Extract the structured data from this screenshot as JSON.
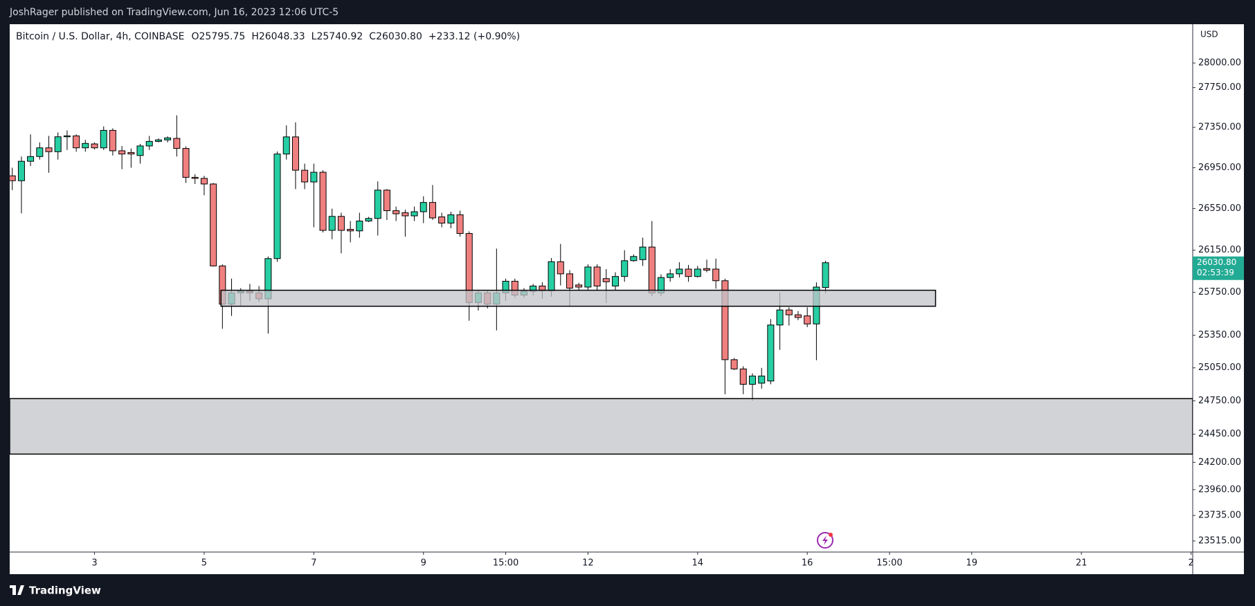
{
  "header": {
    "publisher": "JoshRager published on TradingView.com, Jun 16, 2023 12:06 UTC-5"
  },
  "footer": {
    "brand": "TradingView"
  },
  "chart_data": {
    "type": "candlestick",
    "symbol": "Bitcoin / U.S. Dollar, 4h, COINBASE",
    "ohlc": [
      {
        "key": "O",
        "value": "25795.75"
      },
      {
        "key": "H",
        "value": "26048.33"
      },
      {
        "key": "L",
        "value": "25740.92"
      },
      {
        "key": "C",
        "value": "26030.80"
      }
    ],
    "change": "+233.12 (+0.90%)",
    "currency": "USD",
    "log_scale": true,
    "grid": false,
    "up_color": "#26cfa3",
    "down_color": "#f07f7f",
    "border_color": "#000000",
    "x": [
      1.5,
      1.667,
      1.833,
      2,
      2.167,
      2.333,
      2.5,
      2.667,
      2.833,
      3,
      3.167,
      3.333,
      3.5,
      3.667,
      3.833,
      4,
      4.167,
      4.333,
      4.5,
      4.667,
      4.833,
      5,
      5.167,
      5.333,
      5.5,
      5.667,
      5.833,
      6,
      6.167,
      6.333,
      6.5,
      6.667,
      6.833,
      7,
      7.167,
      7.333,
      7.5,
      7.667,
      7.833,
      8,
      8.167,
      8.333,
      8.5,
      8.667,
      8.833,
      9,
      9.167,
      9.333,
      9.5,
      9.667,
      9.833,
      10,
      10.167,
      10.333,
      10.5,
      10.667,
      10.833,
      11,
      11.167,
      11.333,
      11.5,
      11.667,
      11.833,
      12,
      12.167,
      12.333,
      12.5,
      12.667,
      12.833,
      13,
      13.167,
      13.333,
      13.5,
      13.667,
      13.833,
      14,
      14.167,
      14.333,
      14.5,
      14.667,
      14.833,
      15,
      15.167,
      15.333,
      15.5,
      15.667,
      15.833,
      16,
      16.167,
      16.333
    ],
    "open": [
      26870,
      26822,
      27013,
      27060,
      27146,
      27108,
      27256,
      27265,
      27146,
      27185,
      27146,
      27320,
      27117,
      27100,
      27070,
      27165,
      27210,
      27225,
      27240,
      27140,
      26855,
      26845,
      26790,
      26000,
      25640,
      25745,
      25760,
      25745,
      25690,
      26070,
      27085,
      27255,
      26925,
      26810,
      26905,
      26340,
      26475,
      26350,
      26335,
      26430,
      26455,
      26730,
      26530,
      26510,
      26480,
      26520,
      26610,
      26470,
      26410,
      26490,
      26310,
      25655,
      25745,
      25640,
      25745,
      25855,
      25725,
      25760,
      25810,
      25765,
      26040,
      25925,
      25820,
      25800,
      25990,
      25880,
      25810,
      25900,
      26050,
      26060,
      26180,
      25745,
      25890,
      25925,
      25970,
      25900,
      25975,
      25970,
      25860,
      25125,
      25040,
      24900,
      24910,
      24930,
      25445,
      25585,
      25540,
      25530,
      25455,
      25795.75
    ],
    "high": [
      26950,
      27060,
      27280,
      27200,
      27265,
      27300,
      27320,
      27280,
      27225,
      27200,
      27360,
      27340,
      27165,
      27140,
      27185,
      27265,
      27240,
      27260,
      27470,
      27160,
      26885,
      26870,
      26800,
      26015,
      25880,
      25790,
      25830,
      25810,
      26090,
      27110,
      27370,
      27400,
      26990,
      26990,
      26925,
      26550,
      26510,
      26430,
      26510,
      26470,
      26815,
      26740,
      26570,
      26540,
      26570,
      26670,
      26780,
      26510,
      26520,
      26530,
      26330,
      25770,
      25770,
      26165,
      25880,
      25880,
      25790,
      25830,
      25845,
      26075,
      26210,
      25960,
      25840,
      26015,
      26015,
      25970,
      25940,
      26150,
      26110,
      26270,
      26430,
      25920,
      25970,
      26035,
      26010,
      26000,
      26060,
      26070,
      25880,
      25140,
      25065,
      25000,
      25050,
      25500,
      25750,
      25610,
      25575,
      25610,
      25845,
      26048.33
    ],
    "low": [
      26730,
      26504,
      26966,
      27030,
      26900,
      27030,
      27125,
      27108,
      27108,
      27130,
      27125,
      27070,
      26935,
      26950,
      26990,
      27125,
      27200,
      27200,
      27060,
      26800,
      26790,
      26680,
      25995,
      25410,
      25530,
      25620,
      25670,
      25660,
      25365,
      26040,
      27030,
      26740,
      26740,
      26370,
      26320,
      26255,
      26120,
      26225,
      26270,
      26420,
      26290,
      26440,
      26430,
      26280,
      26430,
      26410,
      26440,
      26370,
      26360,
      26280,
      25485,
      25580,
      25600,
      25395,
      25670,
      25700,
      25700,
      25720,
      25690,
      25710,
      25815,
      25620,
      25770,
      25770,
      25770,
      25650,
      25770,
      25850,
      26040,
      26000,
      25715,
      25715,
      25850,
      25890,
      25850,
      25890,
      25940,
      25785,
      24810,
      25030,
      24810,
      24750,
      24860,
      24900,
      25215,
      25440,
      25490,
      25425,
      25120,
      25740.92
    ],
    "close": [
      26822,
      27013,
      27060,
      27146,
      27108,
      27256,
      27265,
      27146,
      27190,
      27146,
      27320,
      27117,
      27085,
      27085,
      27165,
      27210,
      27225,
      27245,
      27140,
      26855,
      26845,
      26790,
      26000,
      25640,
      25745,
      25760,
      25745,
      25690,
      26070,
      27085,
      27255,
      26925,
      26810,
      26905,
      26340,
      26475,
      26340,
      26335,
      26430,
      26455,
      26730,
      26530,
      26500,
      26480,
      26520,
      26610,
      26460,
      26410,
      26490,
      26310,
      25655,
      25745,
      25640,
      25745,
      25855,
      25725,
      25760,
      25810,
      25765,
      26040,
      25925,
      25790,
      25800,
      25990,
      25810,
      25850,
      25900,
      26050,
      26090,
      26180,
      25745,
      25890,
      25925,
      25970,
      25900,
      25970,
      25960,
      25860,
      25125,
      25040,
      24900,
      24975,
      24975,
      25445,
      25585,
      25540,
      25515,
      25455,
      25800,
      26030.8
    ],
    "xlim": [
      1.453,
      23.03
    ],
    "xticks": [
      3,
      5,
      7,
      9,
      {
        "value": 10.5,
        "label": "15:00"
      },
      12,
      14,
      16,
      {
        "value": 17.5,
        "label": "15:00"
      },
      19,
      21,
      {
        "value": 23,
        "label": "2"
      }
    ],
    "ylim": [
      23420,
      28400
    ],
    "yticks": [
      {
        "value": 28000,
        "label": "28000.00"
      },
      {
        "value": 27750,
        "label": "27750.00"
      },
      {
        "value": 27350,
        "label": "27350.00"
      },
      {
        "value": 26950,
        "label": "26950.00"
      },
      {
        "value": 26550,
        "label": "26550.00"
      },
      {
        "value": 26150,
        "label": "26150.00"
      },
      {
        "value": 25750,
        "label": "25750.00"
      },
      {
        "value": 25350,
        "label": "25350.00"
      },
      {
        "value": 25050,
        "label": "25050.00"
      },
      {
        "value": 24750,
        "label": "24750.00"
      },
      {
        "value": 24450,
        "label": "24450.00"
      },
      {
        "value": 24200,
        "label": "24200.00"
      },
      {
        "value": 23960,
        "label": "23960.00"
      },
      {
        "value": 23735,
        "label": "23735.00"
      },
      {
        "value": 23515,
        "label": "23515.00"
      }
    ],
    "last_price": {
      "value": 26030.8,
      "label": "26030.80",
      "countdown": "02:53:39",
      "color": "#22ab94"
    },
    "zones": [
      {
        "x": [
          5.307,
          18.34
        ],
        "y": [
          25620,
          25770
        ]
      },
      {
        "x": [
          1.453,
          23.03
        ],
        "y": [
          24273,
          24770
        ]
      }
    ],
    "zone_color": "#c2c4ca"
  }
}
